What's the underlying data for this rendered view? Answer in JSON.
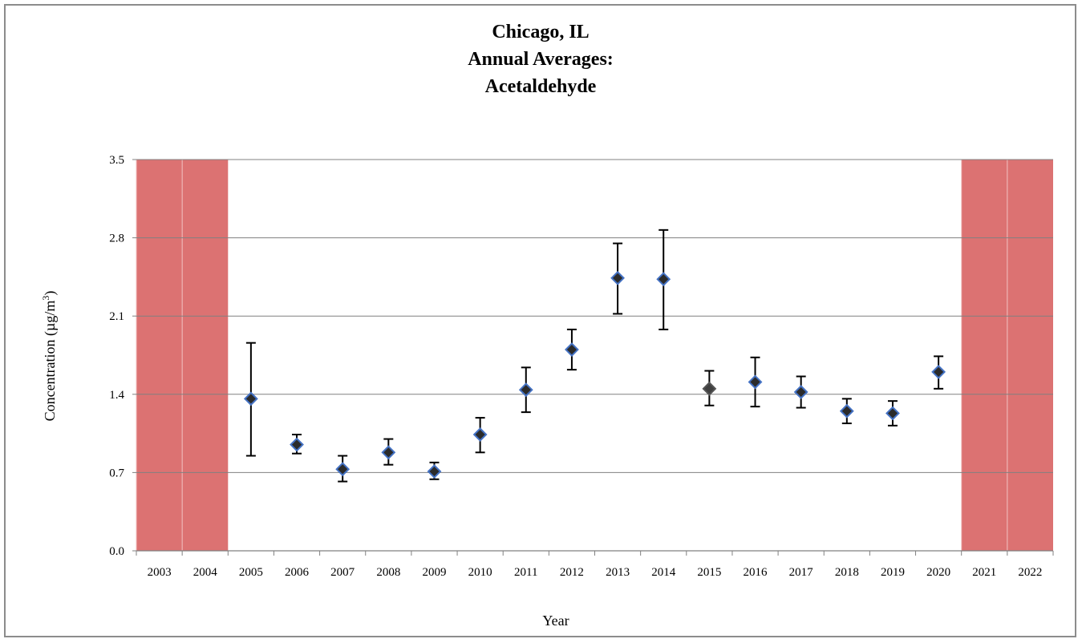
{
  "chart_data": {
    "type": "scatter",
    "title_lines": [
      "Chicago, IL",
      "Annual Averages:",
      "Acetaldehyde"
    ],
    "xlabel": "Year",
    "ylabel": "Concentration (µg/m",
    "ylabel_sup": "3",
    "ylabel_close": ")",
    "ylim": [
      0,
      3.5
    ],
    "yticks": [
      "0.0",
      "0.7",
      "1.4",
      "2.1",
      "2.8",
      "3.5"
    ],
    "categories": [
      "2003",
      "2004",
      "2005",
      "2006",
      "2007",
      "2008",
      "2009",
      "2010",
      "2011",
      "2012",
      "2013",
      "2014",
      "2015",
      "2016",
      "2017",
      "2018",
      "2019",
      "2020",
      "2021",
      "2022"
    ],
    "grid": true,
    "no_data_years": [
      "2003",
      "2004",
      "2021",
      "2022"
    ],
    "colors": {
      "marker": "#2b2b2b",
      "marker_edge": "#4472c4",
      "marker_2015": "#404040",
      "no_data_fill": "#dc7272",
      "gridline": "#808080"
    },
    "series": [
      {
        "points": [
          {
            "x": "2005",
            "y": 1.36,
            "low": 0.85,
            "high": 1.86
          },
          {
            "x": "2006",
            "y": 0.95,
            "low": 0.87,
            "high": 1.04
          },
          {
            "x": "2007",
            "y": 0.73,
            "low": 0.62,
            "high": 0.85
          },
          {
            "x": "2008",
            "y": 0.88,
            "low": 0.77,
            "high": 1.0
          },
          {
            "x": "2009",
            "y": 0.71,
            "low": 0.64,
            "high": 0.79
          },
          {
            "x": "2010",
            "y": 1.04,
            "low": 0.88,
            "high": 1.19
          },
          {
            "x": "2011",
            "y": 1.44,
            "low": 1.24,
            "high": 1.64
          },
          {
            "x": "2012",
            "y": 1.8,
            "low": 1.62,
            "high": 1.98
          },
          {
            "x": "2013",
            "y": 2.44,
            "low": 2.12,
            "high": 2.75
          },
          {
            "x": "2014",
            "y": 2.43,
            "low": 1.98,
            "high": 2.87
          },
          {
            "x": "2015",
            "y": 1.45,
            "low": 1.3,
            "high": 1.61
          },
          {
            "x": "2016",
            "y": 1.51,
            "low": 1.29,
            "high": 1.73
          },
          {
            "x": "2017",
            "y": 1.42,
            "low": 1.28,
            "high": 1.56
          },
          {
            "x": "2018",
            "y": 1.25,
            "low": 1.14,
            "high": 1.36
          },
          {
            "x": "2019",
            "y": 1.23,
            "low": 1.12,
            "high": 1.34
          },
          {
            "x": "2020",
            "y": 1.6,
            "low": 1.45,
            "high": 1.74
          }
        ]
      }
    ]
  }
}
